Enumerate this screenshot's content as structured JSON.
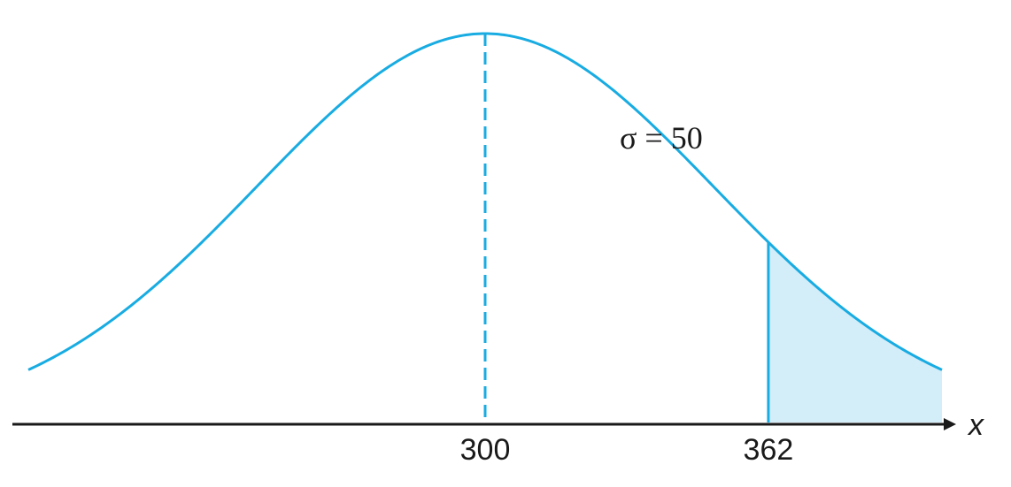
{
  "chart_data": {
    "type": "area",
    "distribution": "normal",
    "mean": 300,
    "sd": 50,
    "shaded_from": 362,
    "shaded_side": "right",
    "x_ticks": [
      300,
      362
    ],
    "x_tick_labels": [
      "300",
      "362"
    ],
    "xlabel": "x",
    "annotation": "σ = 50",
    "xlim": [
      200,
      400
    ],
    "mean_line": "dashed",
    "colors": {
      "curve": "#18ace2",
      "shade": "#d3edf9",
      "axis": "#1a1a1a"
    }
  }
}
